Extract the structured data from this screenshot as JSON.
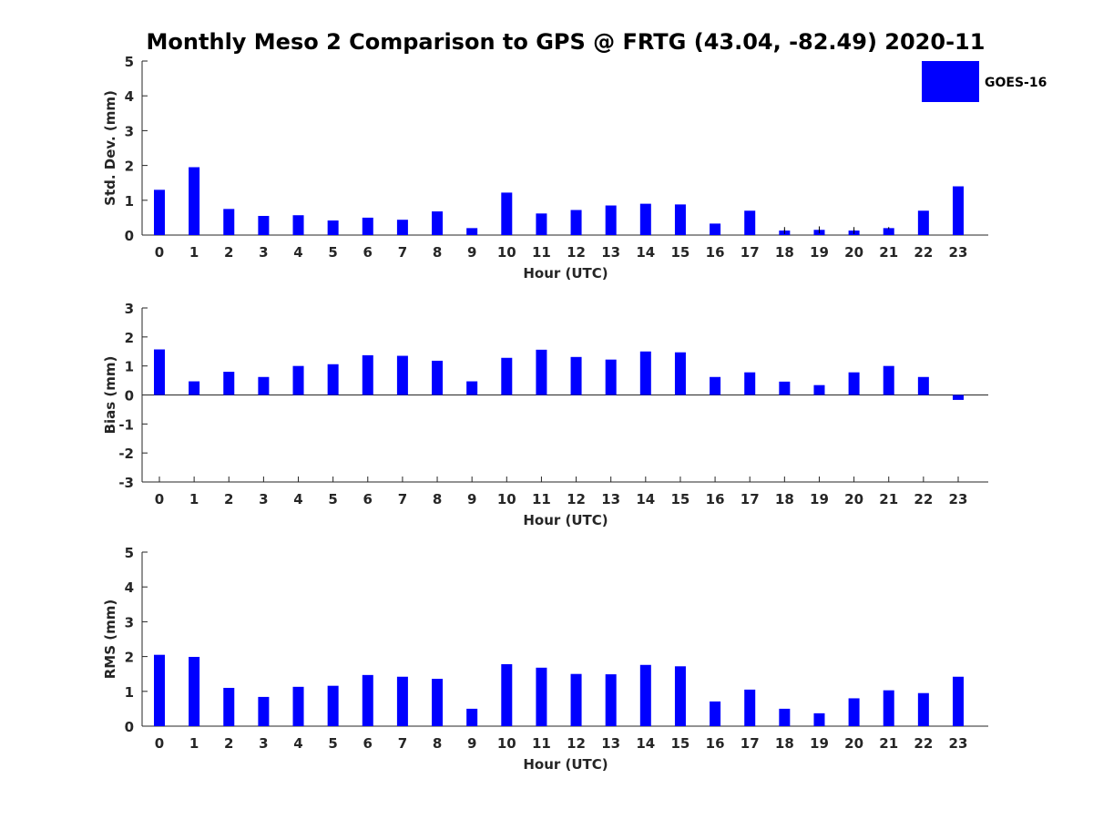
{
  "figure": {
    "title": "Monthly Meso 2 Comparison to GPS @ FRTG (43.04, -82.49) 2020-11",
    "bar_color": "#0000ff",
    "legend": {
      "label": "GOES-16",
      "placement": "top-right"
    }
  },
  "chart_data": [
    {
      "type": "bar",
      "ylabel": "Std. Dev. (mm)",
      "xlabel": "Hour (UTC)",
      "ylim": [
        0,
        5
      ],
      "yticks": [
        0,
        1,
        2,
        3,
        4,
        5
      ],
      "categories": [
        "0",
        "1",
        "2",
        "3",
        "4",
        "5",
        "6",
        "7",
        "8",
        "9",
        "10",
        "11",
        "12",
        "13",
        "14",
        "15",
        "16",
        "17",
        "18",
        "19",
        "20",
        "21",
        "22",
        "23"
      ],
      "series": [
        {
          "name": "GOES-16",
          "values": [
            1.3,
            1.95,
            0.75,
            0.55,
            0.57,
            0.42,
            0.5,
            0.44,
            0.68,
            0.2,
            1.22,
            0.62,
            0.72,
            0.85,
            0.9,
            0.88,
            0.33,
            0.7,
            0.13,
            0.15,
            0.13,
            0.2,
            0.7,
            1.4
          ],
          "errors": [
            0,
            0,
            0,
            0,
            0,
            0,
            0,
            0,
            0,
            0,
            0,
            0,
            0,
            0,
            0,
            0,
            0,
            0,
            0.1,
            0.1,
            0.1,
            0.03,
            0,
            0
          ]
        }
      ]
    },
    {
      "type": "bar",
      "ylabel": "Bias (mm)",
      "xlabel": "Hour (UTC)",
      "ylim": [
        -3,
        3
      ],
      "yticks": [
        -3,
        -2,
        -1,
        0,
        1,
        2,
        3
      ],
      "categories": [
        "0",
        "1",
        "2",
        "3",
        "4",
        "5",
        "6",
        "7",
        "8",
        "9",
        "10",
        "11",
        "12",
        "13",
        "14",
        "15",
        "16",
        "17",
        "18",
        "19",
        "20",
        "21",
        "22",
        "23"
      ],
      "series": [
        {
          "name": "GOES-16",
          "values": [
            1.57,
            0.47,
            0.8,
            0.62,
            1.0,
            1.06,
            1.37,
            1.35,
            1.18,
            0.47,
            1.28,
            1.56,
            1.31,
            1.22,
            1.5,
            1.47,
            0.62,
            0.78,
            0.46,
            0.34,
            0.78,
            1.0,
            0.62,
            -0.17
          ]
        }
      ]
    },
    {
      "type": "bar",
      "ylabel": "RMS (mm)",
      "xlabel": "Hour (UTC)",
      "ylim": [
        0,
        5
      ],
      "yticks": [
        0,
        1,
        2,
        3,
        4,
        5
      ],
      "categories": [
        "0",
        "1",
        "2",
        "3",
        "4",
        "5",
        "6",
        "7",
        "8",
        "9",
        "10",
        "11",
        "12",
        "13",
        "14",
        "15",
        "16",
        "17",
        "18",
        "19",
        "20",
        "21",
        "22",
        "23"
      ],
      "series": [
        {
          "name": "GOES-16",
          "values": [
            2.05,
            1.99,
            1.1,
            0.84,
            1.13,
            1.16,
            1.47,
            1.42,
            1.36,
            0.5,
            1.78,
            1.68,
            1.5,
            1.49,
            1.76,
            1.72,
            0.71,
            1.05,
            0.5,
            0.37,
            0.8,
            1.03,
            0.95,
            1.42
          ]
        }
      ]
    }
  ]
}
